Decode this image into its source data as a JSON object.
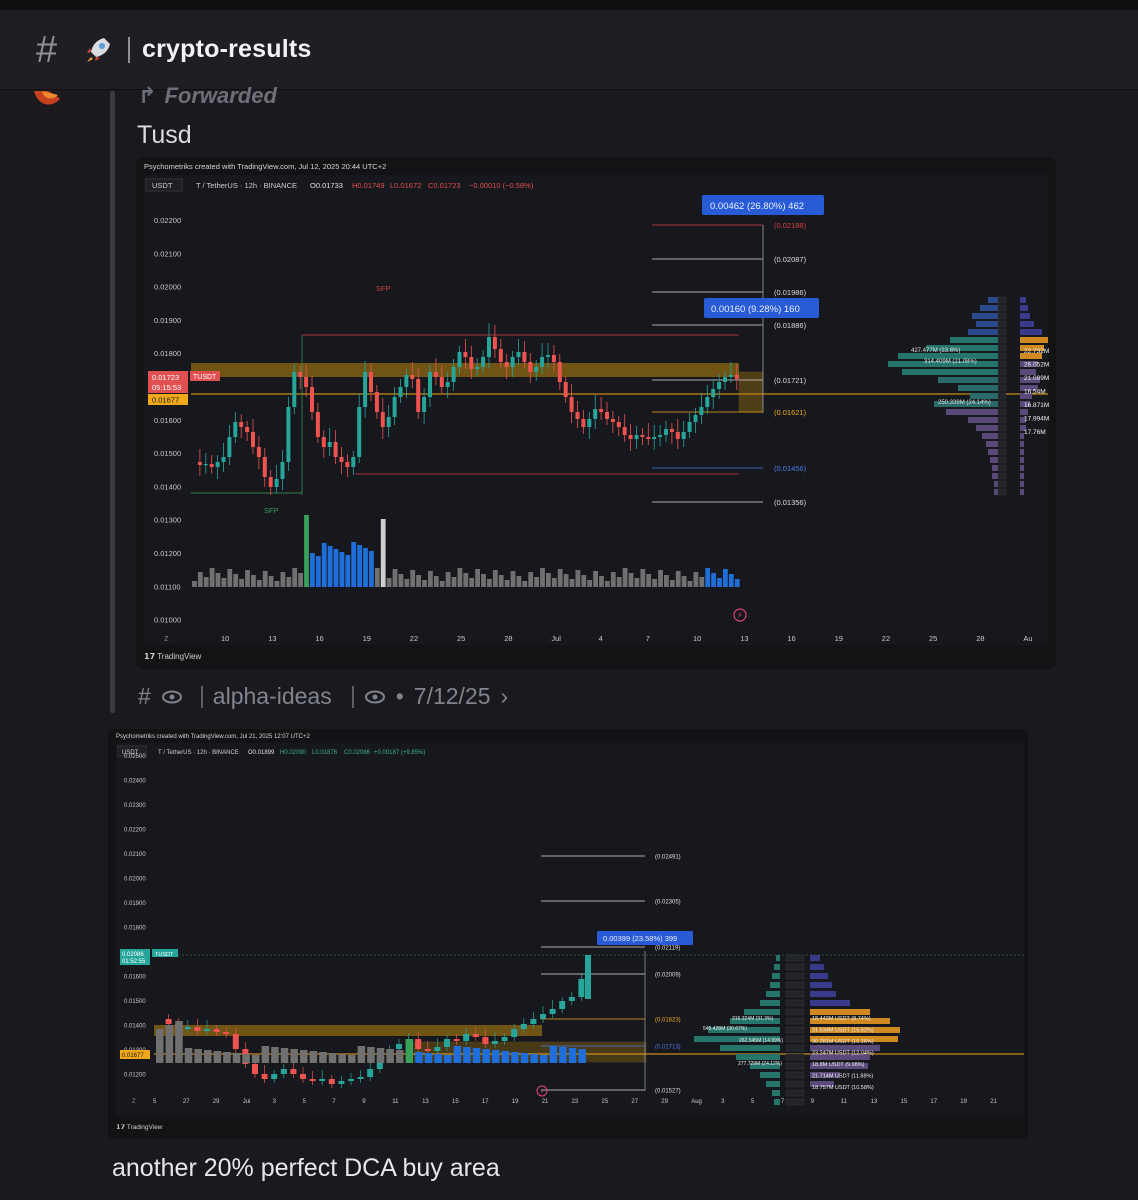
{
  "header": {
    "hash_icon": "#",
    "rocket_icon": "rocket-icon",
    "channel": "crypto-results"
  },
  "message": {
    "forwarded_label": "Forwarded",
    "text": "Tusd",
    "meta": {
      "channel": "alpha-ideas",
      "date": "7/12/25"
    },
    "bottom_text": "another 20% perfect DCA buy area"
  },
  "chart1": {
    "credit": "Psychometriks created with TradingView.com, Jul 12, 2025 20:44 UTC+2",
    "symbol_box": "USDT",
    "symbol_line": "T / TetherUS · 12h · BINANCE",
    "ohlc": {
      "o": "O0.01733",
      "h": "H0.01749",
      "l": "L0.01672",
      "c": "C0.01723",
      "chg": "−0.00010 (−0.58%)"
    },
    "y_ticks": [
      "0.02200",
      "0.02100",
      "0.02000",
      "0.01900",
      "0.01800",
      "0.01700",
      "0.01600",
      "0.01500",
      "0.01400",
      "0.01300",
      "0.01200",
      "0.01100",
      "0.01000"
    ],
    "x_ticks": [
      "10",
      "13",
      "16",
      "19",
      "22",
      "25",
      "28",
      "Jul",
      "4",
      "7",
      "10",
      "13",
      "16",
      "19",
      "22",
      "25",
      "28",
      "Au"
    ],
    "price_tag": "0.01723",
    "price_time": "05:15:53",
    "price_ticker": "TUSDT",
    "level_tag": "0.01677",
    "levels": [
      "(0.02188)",
      "(0.02087)",
      "(0.01986)",
      "(0.01886)",
      "(0.01721)",
      "(0.01621)",
      "(0.01456)",
      "(0.01356)"
    ],
    "measure1": "0.00462 (26.80%) 462",
    "measure2": "0.00160 (9.28%) 160",
    "sfp_top": "SFP",
    "sfp_bottom": "SFP",
    "vp_labels": [
      "427.477M (33.6%)",
      "314.409M (21.08%)",
      "250.339M (24.14%)"
    ],
    "vp_right": [
      "22.732M",
      "26.052M",
      "21.089M",
      "16.54M",
      "16.871M",
      "17.994M",
      "17.76M"
    ],
    "tv_logo": "TradingView"
  },
  "chart2": {
    "credit": "Psychometriks created with TradingView.com, Jul 21, 2025 12:07 UTC+2",
    "symbol_box": "USDT",
    "symbol_line": "T / TetherUS · 12h · BINANCE",
    "ohlc": {
      "o": "O0.01899",
      "h": "H0.02090",
      "l": "L0.01876",
      "c": "C0.02086",
      "chg": "+0.00187 (+9.85%)"
    },
    "y_ticks": [
      "0.02500",
      "0.02400",
      "0.02300",
      "0.02200",
      "0.02100",
      "0.02000",
      "0.01900",
      "0.01800",
      "0.01700",
      "0.01600",
      "0.01500",
      "0.01400",
      "0.01300",
      "0.01200"
    ],
    "x_ticks": [
      "5",
      "27",
      "29",
      "Jul",
      "3",
      "5",
      "7",
      "9",
      "11",
      "13",
      "15",
      "17",
      "19",
      "21",
      "23",
      "25",
      "27",
      "29",
      "Aug",
      "3",
      "5",
      "7",
      "9",
      "11",
      "13",
      "15",
      "17",
      "19",
      "21"
    ],
    "price_tag": "0.02086",
    "price_time": "01:52:55",
    "price_ticker": "TUSDT",
    "level_tag": "0.01677",
    "levels": [
      "(0.02491)",
      "(0.02305)",
      "(0.02119)",
      "(0.02009)",
      "(0.01823)",
      "(0.01713)",
      "(0.01527)"
    ],
    "measure": "0.00399 (23.58%) 399",
    "vp_labels": [
      "316.324M (31.3%)",
      "549.428M (30.67%)",
      "262.545M (14.99%)",
      "277.729M (24.12%)"
    ],
    "vp_right": [
      "18.443M USDT (8.74%)",
      "31.634M USDT (15.52%)",
      "30.281M USDT (15.16%)",
      "23.247M USDT (12.04%)",
      "18.8M USDT (9.98%)",
      "21.714M USDT (11.88%)",
      "18.757M USDT (10.58%)"
    ],
    "tv_logo": "TradingView"
  }
}
